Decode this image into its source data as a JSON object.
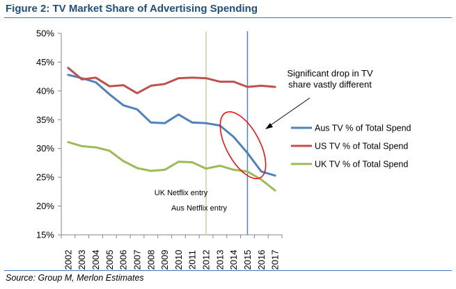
{
  "header": {
    "title": "Figure 2:  TV Market Share of Advertising Spending"
  },
  "footer": {
    "source": "Source: Group M, Merlon Estimates"
  },
  "chart_data": {
    "type": "line",
    "title": "",
    "xlabel": "",
    "ylabel": "",
    "categories": [
      "2002",
      "2003",
      "2004",
      "2005",
      "2006",
      "2007",
      "2008",
      "2009",
      "2010",
      "2011",
      "2012",
      "2013",
      "2014",
      "2015",
      "2016",
      "2017"
    ],
    "yticks": [
      "15%",
      "20%",
      "25%",
      "30%",
      "35%",
      "40%",
      "45%",
      "50%"
    ],
    "ylim": [
      15,
      50
    ],
    "grid": false,
    "legend_position": "right",
    "series": [
      {
        "name": "Aus TV % of Total Spend",
        "color": "#4f81bd",
        "values": [
          42.8,
          42.2,
          41.5,
          39.4,
          37.5,
          36.8,
          34.5,
          34.4,
          35.9,
          34.5,
          34.4,
          34.0,
          32.0,
          29.2,
          26.0,
          25.3
        ]
      },
      {
        "name": "US TV % of Total Spend",
        "color": "#c0504d",
        "values": [
          44.0,
          42.0,
          42.3,
          40.8,
          41.0,
          39.6,
          40.9,
          41.2,
          42.2,
          42.3,
          42.2,
          41.6,
          41.6,
          40.7,
          40.9,
          40.7
        ]
      },
      {
        "name": "UK TV % of Total Spend",
        "color": "#9bbb59",
        "values": [
          31.1,
          30.4,
          30.2,
          29.6,
          27.8,
          26.6,
          26.1,
          26.3,
          27.7,
          27.6,
          26.5,
          27.0,
          26.3,
          26.0,
          24.6,
          22.7
        ]
      }
    ],
    "markers": [
      {
        "label": "UK Netflix entry",
        "x": 2012,
        "color": "#c3d69b"
      },
      {
        "label": "Aus Netflix entry",
        "x": 2015,
        "color": "#4f81bd"
      }
    ],
    "annotation": {
      "text_line1": "Significant drop in TV",
      "text_line2": "share vastly different",
      "color": "#ff0000"
    }
  }
}
